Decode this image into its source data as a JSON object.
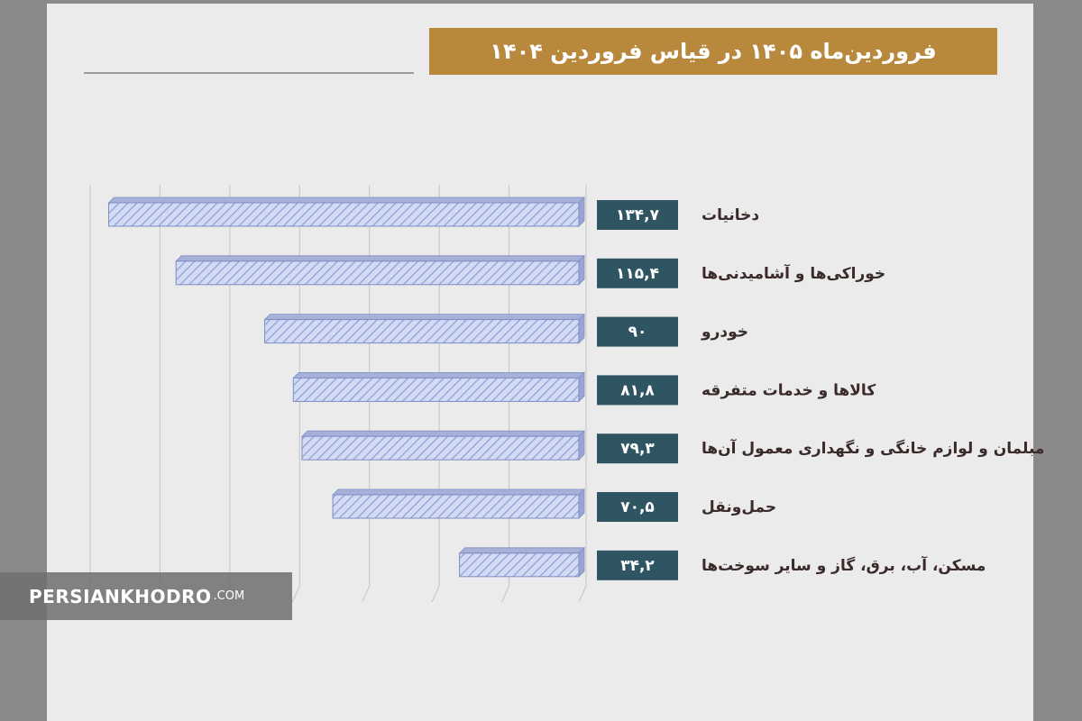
{
  "header": {
    "title": "فروردین‌ماه ۱۴۰۵ در قیاس فروردین ۱۴۰۴"
  },
  "watermark": {
    "main": "PERSIANKHODRO",
    "suffix": ".COM"
  },
  "colors": {
    "background": "#ebebeb",
    "title_bar": "#b8893d",
    "bar_fill": "#d2daf4",
    "bar_stripe": "#8ea0d6",
    "bar_top": "#a6b0d8",
    "value_box": "#2f5562",
    "gridline": "#c4c4c4"
  },
  "chart_data": {
    "type": "bar",
    "orientation": "horizontal",
    "categories": [
      "دخانیات",
      "خوراکی‌ها و آشامیدنی‌ها",
      "خودرو",
      "کالاها و خدمات متفرقه",
      "مبلمان و لوازم خانگی و نگهداری معمول آن‌ها",
      "حمل‌ونقل",
      "مسکن، آب، برق، گاز و سایر سوخت‌ها"
    ],
    "values": [
      134.7,
      115.4,
      90,
      81.8,
      79.3,
      70.5,
      34.2
    ],
    "value_labels": [
      "۱۳۴,۷",
      "۱۱۵,۴",
      "۹۰",
      "۸۱,۸",
      "۷۹,۳",
      "۷۰,۵",
      "۳۴,۲"
    ],
    "xlim": [
      0,
      140
    ],
    "grid": true,
    "legend": "none",
    "title": "فروردین‌ماه ۱۴۰۵ در قیاس فروردین ۱۴۰۴"
  }
}
